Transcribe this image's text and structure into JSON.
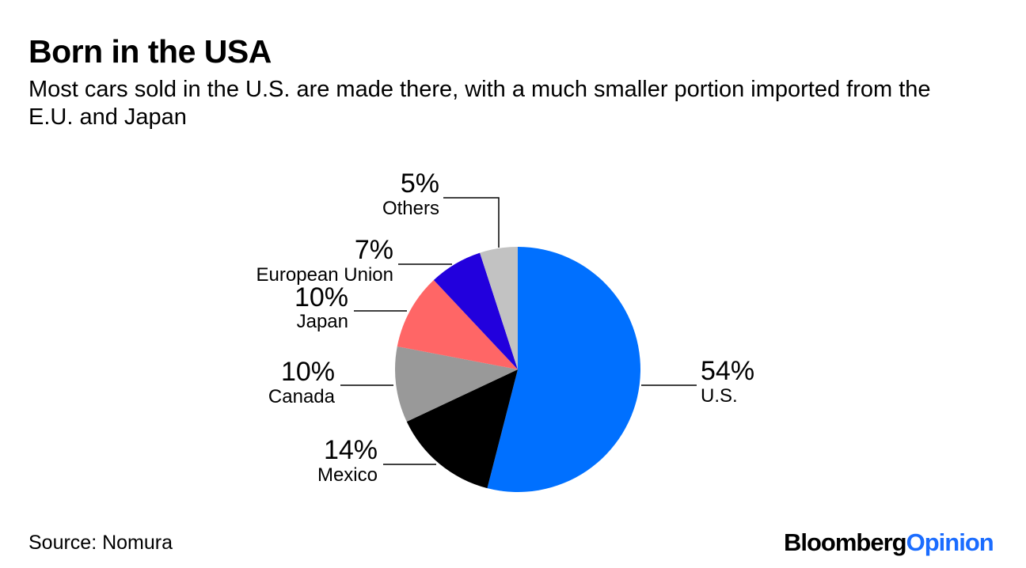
{
  "header": {
    "title": "Born in the USA",
    "subtitle": "Most cars sold in the U.S. are made there, with a much smaller portion imported from the E.U. and Japan"
  },
  "footer": {
    "source": "Source: Nomura",
    "brand_part1": "Bloomberg",
    "brand_part2": "Opinion"
  },
  "chart_data": {
    "type": "pie",
    "title": "Born in the USA",
    "unit": "%",
    "categories": [
      "U.S.",
      "Mexico",
      "Canada",
      "Japan",
      "European Union",
      "Others"
    ],
    "values": [
      54,
      14,
      10,
      10,
      7,
      5
    ],
    "labels": [
      "54%",
      "14%",
      "10%",
      "10%",
      "7%",
      "5%"
    ],
    "colors": [
      "#0070ff",
      "#000000",
      "#999999",
      "#ff6666",
      "#2200dd",
      "#c2c2c2"
    ],
    "start": "12 o'clock",
    "direction": "clockwise"
  }
}
